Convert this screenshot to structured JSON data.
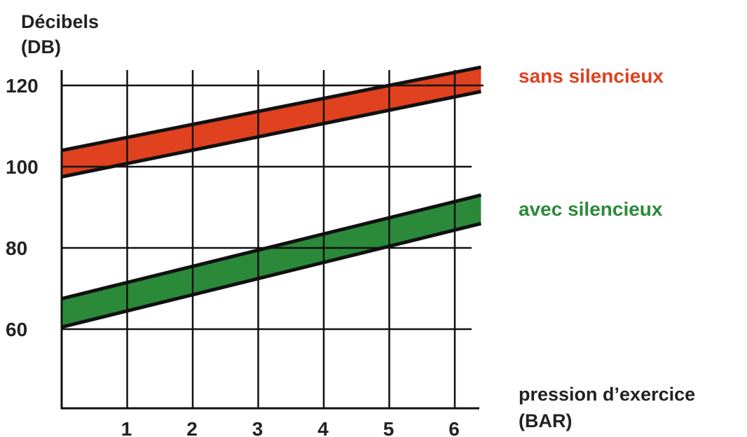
{
  "chart_data": {
    "type": "area",
    "ylabel": [
      "Décibels",
      "(DB)"
    ],
    "xlabel": [
      "pression d’exercice",
      "(BAR)"
    ],
    "x_ticks": [
      1,
      2,
      3,
      4,
      5,
      6
    ],
    "y_ticks": [
      60,
      80,
      100,
      120
    ],
    "xlim": [
      0,
      6.4
    ],
    "ylim": [
      40,
      125
    ],
    "grid": true,
    "series": [
      {
        "name": "sans silencieux",
        "color": "#e0411f",
        "x": [
          0,
          6.4
        ],
        "upper": [
          104,
          124.5
        ],
        "lower": [
          97.5,
          118.5
        ]
      },
      {
        "name": "avec silencieux",
        "color": "#2a8a3a",
        "x": [
          0,
          6.4
        ],
        "upper": [
          67.5,
          93
        ],
        "lower": [
          60.5,
          86
        ]
      }
    ]
  }
}
